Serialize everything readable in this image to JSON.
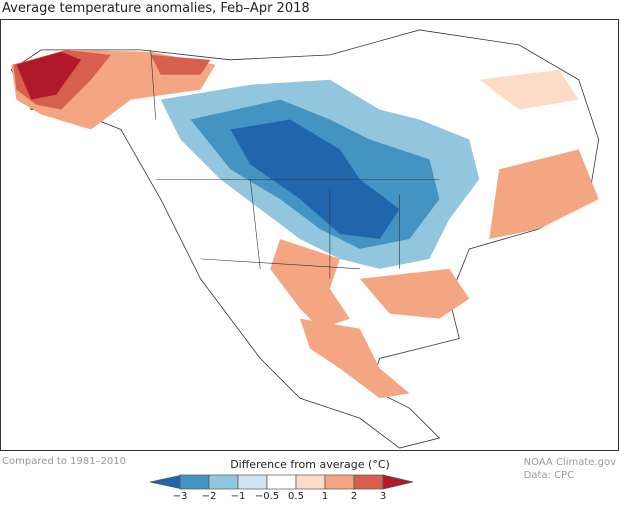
{
  "title": "Average temperature anomalies, Feb–Apr 2018",
  "footer": {
    "compared": "Compared to 1981–2010",
    "credit": "NOAA Climate.gov",
    "data_source": "Data: CPC"
  },
  "legend": {
    "title": "Difference from average (°C)",
    "ticks": [
      "−3",
      "−2",
      "−1",
      "−0.5",
      "0.5",
      "1",
      "2",
      "3"
    ],
    "colors": [
      "#2166ac",
      "#4393c3",
      "#92c5de",
      "#d1e5f0",
      "#ffffff",
      "#fddbc7",
      "#f4a582",
      "#d6604d",
      "#b2182b"
    ]
  }
}
